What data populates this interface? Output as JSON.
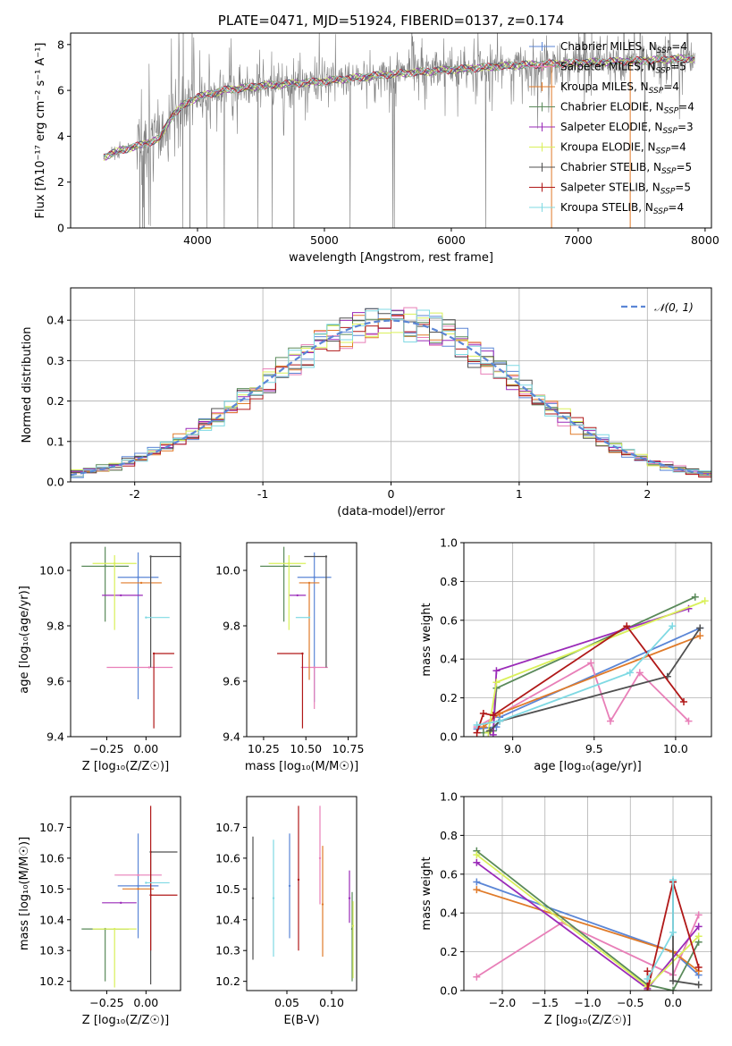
{
  "colors": {
    "Chabrier MILES": "#5b86d6",
    "Salpeter MILES": "#e87fb8",
    "Kroupa MILES": "#e07b2a",
    "Chabrier ELODIE": "#5a8a5a",
    "Salpeter ELODIE": "#9a2ab8",
    "Kroupa ELODIE": "#d9f05a",
    "Chabrier STELIB": "#505050",
    "Salpeter STELIB": "#b01818",
    "Kroupa STELIB": "#7fd9e3"
  },
  "chart_data": [
    {
      "id": "spectrum",
      "type": "line",
      "title": "PLATE=0471, MJD=51924, FIBERID=0137, z=0.174",
      "xlabel": "wavelength [Angstrom, rest frame]",
      "ylabel": "Flux [fλ10⁻¹⁷ erg cm⁻² s⁻¹ A⁻¹]",
      "xlim": [
        3000,
        8050
      ],
      "ylim": [
        0,
        8.5
      ],
      "xticks": [
        4000,
        5000,
        6000,
        7000,
        8000
      ],
      "yticks": [
        0,
        2,
        4,
        6,
        8
      ],
      "data_color": "#808080",
      "continuum_points": [
        [
          3260,
          3.1
        ],
        [
          3400,
          3.4
        ],
        [
          3550,
          3.6
        ],
        [
          3700,
          3.9
        ],
        [
          3800,
          4.9
        ],
        [
          3900,
          5.4
        ],
        [
          4000,
          5.7
        ],
        [
          4200,
          6.0
        ],
        [
          4500,
          6.2
        ],
        [
          5000,
          6.4
        ],
        [
          5500,
          6.7
        ],
        [
          6000,
          6.9
        ],
        [
          6500,
          7.1
        ],
        [
          7000,
          7.2
        ],
        [
          7500,
          7.3
        ],
        [
          7900,
          7.4
        ]
      ],
      "legend": [
        {
          "label": "Chabrier MILES, N",
          "sub": "SSP",
          "tail": "=4"
        },
        {
          "label": "Salpeter MILES, N",
          "sub": "SSP",
          "tail": "=5"
        },
        {
          "label": "Kroupa MILES, N",
          "sub": "SSP",
          "tail": "=4"
        },
        {
          "label": "Chabrier ELODIE, N",
          "sub": "SSP",
          "tail": "=4"
        },
        {
          "label": "Salpeter ELODIE, N",
          "sub": "SSP",
          "tail": "=3"
        },
        {
          "label": "Kroupa ELODIE, N",
          "sub": "SSP",
          "tail": "=4"
        },
        {
          "label": "Chabrier STELIB, N",
          "sub": "SSP",
          "tail": "=5"
        },
        {
          "label": "Salpeter STELIB, N",
          "sub": "SSP",
          "tail": "=5"
        },
        {
          "label": "Kroupa STELIB, N",
          "sub": "SSP",
          "tail": "=4"
        }
      ],
      "legend_placement": "right"
    },
    {
      "id": "residuals",
      "type": "line",
      "xlabel": "(data-model)/error",
      "ylabel": "Normed distribution",
      "xlim": [
        -2.5,
        2.5
      ],
      "ylim": [
        0,
        0.48
      ],
      "xticks": [
        -2,
        -1,
        0,
        1,
        2
      ],
      "yticks": [
        0.0,
        0.1,
        0.2,
        0.3,
        0.4
      ],
      "grid": true,
      "legend": [
        {
          "label": "𝒩(0, 1)",
          "color": "#5b86d6",
          "style": "dashed"
        }
      ],
      "legend_placement": "top-right",
      "bin_width": 0.1
    },
    {
      "id": "age_vs_Z",
      "type": "scatter",
      "xlabel": "Z [log₁₀(Z/Z☉)]",
      "ylabel": "age  [log₁₀(age/yr)]",
      "xlim": [
        -0.48,
        0.22
      ],
      "ylim": [
        9.4,
        10.1
      ],
      "xticks": [
        -0.25,
        0.0
      ],
      "xticklabels": [
        "−0.25",
        "0.00"
      ],
      "yticks": [
        9.4,
        9.6,
        9.8,
        10.0
      ],
      "points": [
        {
          "model": "Chabrier MILES",
          "x": -0.05,
          "y": 9.975,
          "xerr": [
            0.13,
            0.13
          ],
          "yerr": [
            0.44,
            0.09
          ]
        },
        {
          "model": "Salpeter MILES",
          "x": 0.02,
          "y": 9.65,
          "xerr": [
            0.27,
            0.15
          ],
          "yerr": [
            0.0,
            0.0
          ]
        },
        {
          "model": "Kroupa MILES",
          "x": -0.03,
          "y": 9.955,
          "xerr": [
            0.13,
            0.13
          ],
          "yerr": [
            0.0,
            0.0
          ]
        },
        {
          "model": "Chabrier ELODIE",
          "x": -0.26,
          "y": 10.015,
          "xerr": [
            0.15,
            0.15
          ],
          "yerr": [
            0.2,
            0.07
          ]
        },
        {
          "model": "Salpeter ELODIE",
          "x": -0.16,
          "y": 9.91,
          "xerr": [
            0.12,
            0.14
          ],
          "yerr": [
            0.0,
            0.0
          ]
        },
        {
          "model": "Kroupa ELODIE",
          "x": -0.2,
          "y": 10.025,
          "xerr": [
            0.14,
            0.14
          ],
          "yerr": [
            0.24,
            0.03
          ]
        },
        {
          "model": "Chabrier STELIB",
          "x": 0.03,
          "y": 10.05,
          "xerr": [
            0.0,
            0.2
          ],
          "yerr": [
            0.4,
            0.0
          ]
        },
        {
          "model": "Salpeter STELIB",
          "x": 0.05,
          "y": 9.7,
          "xerr": [
            0.0,
            0.13
          ],
          "yerr": [
            0.27,
            0.0
          ]
        },
        {
          "model": "Kroupa STELIB",
          "x": 0.0,
          "y": 9.83,
          "xerr": [
            0.0,
            0.15
          ],
          "yerr": [
            0.0,
            0.0
          ]
        }
      ]
    },
    {
      "id": "age_vs_mass",
      "type": "scatter",
      "xlabel": "mass [log₁₀(M/M☉)]",
      "xlim": [
        10.15,
        10.8
      ],
      "ylim": [
        9.4,
        10.1
      ],
      "xticks": [
        10.25,
        10.5,
        10.75
      ],
      "xticklabels": [
        "10.25",
        "10.50",
        "10.75"
      ],
      "yticks": [
        9.4,
        9.6,
        9.8,
        10.0
      ],
      "points": [
        {
          "model": "Chabrier MILES",
          "x": 10.55,
          "y": 9.975,
          "xerr": [
            0.1,
            0.1
          ],
          "yerr": [
            0.45,
            0.09
          ]
        },
        {
          "model": "Salpeter MILES",
          "x": 10.55,
          "y": 9.65,
          "xerr": [
            0.08,
            0.08
          ],
          "yerr": [
            0.15,
            0.0
          ]
        },
        {
          "model": "Kroupa MILES",
          "x": 10.52,
          "y": 9.955,
          "xerr": [
            0.06,
            0.06
          ],
          "yerr": [
            0.35,
            0.0
          ]
        },
        {
          "model": "Chabrier ELODIE",
          "x": 10.37,
          "y": 10.015,
          "xerr": [
            0.14,
            0.1
          ],
          "yerr": [
            0.2,
            0.07
          ]
        },
        {
          "model": "Salpeter ELODIE",
          "x": 10.45,
          "y": 9.91,
          "xerr": [
            0.05,
            0.05
          ],
          "yerr": [
            0.0,
            0.0
          ]
        },
        {
          "model": "Kroupa ELODIE",
          "x": 10.4,
          "y": 10.025,
          "xerr": [
            0.12,
            0.1
          ],
          "yerr": [
            0.24,
            0.03
          ]
        },
        {
          "model": "Chabrier STELIB",
          "x": 10.62,
          "y": 10.05,
          "xerr": [
            0.13,
            0.0
          ],
          "yerr": [
            0.4,
            0.0
          ]
        },
        {
          "model": "Salpeter STELIB",
          "x": 10.48,
          "y": 9.7,
          "xerr": [
            0.15,
            0.0
          ],
          "yerr": [
            0.27,
            0.0
          ]
        },
        {
          "model": "Kroupa STELIB",
          "x": 10.52,
          "y": 9.83,
          "xerr": [
            0.08,
            0.0
          ],
          "yerr": [
            0.0,
            0.0
          ]
        }
      ]
    },
    {
      "id": "weight_vs_age",
      "type": "line",
      "xlabel": "age  [log₁₀(age/yr)]",
      "ylabel": "mass weight",
      "xlim": [
        8.7,
        10.22
      ],
      "ylim": [
        0,
        1.0
      ],
      "xticks": [
        9.0,
        9.5,
        10.0
      ],
      "xticklabels": [
        "9.0",
        "9.5",
        "10.0"
      ],
      "yticks": [
        0.0,
        0.2,
        0.4,
        0.6,
        0.8,
        1.0
      ],
      "grid": true,
      "series": [
        {
          "model": "Chabrier MILES",
          "x": [
            8.78,
            8.9,
            8.92,
            10.15
          ],
          "y": [
            0.04,
            0.05,
            0.1,
            0.56
          ]
        },
        {
          "model": "Salpeter MILES",
          "x": [
            8.78,
            9.48,
            9.6,
            9.78,
            10.08
          ],
          "y": [
            0.05,
            0.38,
            0.08,
            0.33,
            0.08
          ]
        },
        {
          "model": "Kroupa MILES",
          "x": [
            8.82,
            8.92,
            10.15
          ],
          "y": [
            0.05,
            0.12,
            0.52
          ]
        },
        {
          "model": "Chabrier ELODIE",
          "x": [
            8.82,
            8.88,
            8.9,
            10.12
          ],
          "y": [
            0.02,
            0.03,
            0.25,
            0.72
          ]
        },
        {
          "model": "Salpeter ELODIE",
          "x": [
            8.88,
            8.9,
            10.08
          ],
          "y": [
            0.01,
            0.34,
            0.66
          ]
        },
        {
          "model": "Kroupa ELODIE",
          "x": [
            8.85,
            8.9,
            10.18
          ],
          "y": [
            0.02,
            0.28,
            0.7
          ]
        },
        {
          "model": "Chabrier STELIB",
          "x": [
            8.86,
            8.92,
            9.95,
            10.15
          ],
          "y": [
            0.03,
            0.08,
            0.31,
            0.56
          ]
        },
        {
          "model": "Salpeter STELIB",
          "x": [
            8.78,
            8.82,
            8.88,
            9.7,
            10.05
          ],
          "y": [
            0.02,
            0.12,
            0.11,
            0.57,
            0.18
          ]
        },
        {
          "model": "Kroupa STELIB",
          "x": [
            8.78,
            8.92,
            9.72,
            9.98
          ],
          "y": [
            0.06,
            0.08,
            0.33,
            0.57
          ]
        }
      ]
    },
    {
      "id": "mass_vs_Z",
      "type": "scatter",
      "xlabel": "Z [log₁₀(Z/Z☉)]",
      "ylabel": "mass [log₁₀(M/M☉)]",
      "xlim": [
        -0.48,
        0.22
      ],
      "ylim": [
        10.17,
        10.8
      ],
      "xticks": [
        -0.25,
        0.0
      ],
      "xticklabels": [
        "−0.25",
        "0.00"
      ],
      "yticks": [
        10.2,
        10.3,
        10.4,
        10.5,
        10.6,
        10.7
      ],
      "points": [
        {
          "model": "Chabrier MILES",
          "x": -0.05,
          "y": 10.51,
          "xerr": [
            0.13,
            0.13
          ],
          "yerr": [
            0.17,
            0.17
          ]
        },
        {
          "model": "Salpeter MILES",
          "x": -0.05,
          "y": 10.545,
          "xerr": [
            0.15,
            0.15
          ],
          "yerr": [
            0.0,
            0.0
          ]
        },
        {
          "model": "Kroupa MILES",
          "x": -0.05,
          "y": 10.5,
          "xerr": [
            0.1,
            0.1
          ],
          "yerr": [
            0.0,
            0.0
          ]
        },
        {
          "model": "Chabrier ELODIE",
          "x": -0.26,
          "y": 10.37,
          "xerr": [
            0.15,
            0.15
          ],
          "yerr": [
            0.17,
            0.0
          ]
        },
        {
          "model": "Salpeter ELODIE",
          "x": -0.16,
          "y": 10.455,
          "xerr": [
            0.12,
            0.1
          ],
          "yerr": [
            0.0,
            0.0
          ]
        },
        {
          "model": "Kroupa ELODIE",
          "x": -0.2,
          "y": 10.37,
          "xerr": [
            0.14,
            0.14
          ],
          "yerr": [
            0.19,
            0.0
          ]
        },
        {
          "model": "Chabrier STELIB",
          "x": 0.03,
          "y": 10.62,
          "xerr": [
            0.0,
            0.17
          ],
          "yerr": [
            0.43,
            0.0
          ]
        },
        {
          "model": "Salpeter STELIB",
          "x": 0.03,
          "y": 10.48,
          "xerr": [
            0.0,
            0.17
          ],
          "yerr": [
            0.18,
            0.29
          ]
        },
        {
          "model": "Kroupa STELIB",
          "x": 0.0,
          "y": 10.52,
          "xerr": [
            0.0,
            0.15
          ],
          "yerr": [
            0.0,
            0.0
          ]
        }
      ]
    },
    {
      "id": "mass_vs_EBV",
      "type": "scatter",
      "xlabel": "E(B-V)",
      "xlim": [
        0.005,
        0.128
      ],
      "ylim": [
        10.17,
        10.8
      ],
      "xticks": [
        0.05,
        0.1
      ],
      "xticklabels": [
        "0.05",
        "0.10"
      ],
      "yticks": [
        10.2,
        10.3,
        10.4,
        10.5,
        10.6,
        10.7
      ],
      "points": [
        {
          "model": "Chabrier MILES",
          "x": 0.053,
          "y": 10.51,
          "xerr": [
            0.0,
            0.0
          ],
          "yerr": [
            0.17,
            0.17
          ]
        },
        {
          "model": "Salpeter MILES",
          "x": 0.087,
          "y": 10.6,
          "xerr": [
            0.0,
            0.0
          ],
          "yerr": [
            0.15,
            0.17
          ]
        },
        {
          "model": "Kroupa MILES",
          "x": 0.09,
          "y": 10.45,
          "xerr": [
            0.0,
            0.0
          ],
          "yerr": [
            0.17,
            0.19
          ]
        },
        {
          "model": "Chabrier ELODIE",
          "x": 0.123,
          "y": 10.37,
          "xerr": [
            0.0,
            0.0
          ],
          "yerr": [
            0.17,
            0.12
          ]
        },
        {
          "model": "Salpeter ELODIE",
          "x": 0.12,
          "y": 10.47,
          "xerr": [
            0.0,
            0.0
          ],
          "yerr": [
            0.08,
            0.09
          ]
        },
        {
          "model": "Kroupa ELODIE",
          "x": 0.124,
          "y": 10.38,
          "xerr": [
            0.0,
            0.0
          ],
          "yerr": [
            0.17,
            0.08
          ]
        },
        {
          "model": "Chabrier STELIB",
          "x": 0.012,
          "y": 10.47,
          "xerr": [
            0.0,
            0.0
          ],
          "yerr": [
            0.2,
            0.2
          ]
        },
        {
          "model": "Salpeter STELIB",
          "x": 0.063,
          "y": 10.53,
          "xerr": [
            0.0,
            0.0
          ],
          "yerr": [
            0.23,
            0.24
          ]
        },
        {
          "model": "Kroupa STELIB",
          "x": 0.035,
          "y": 10.47,
          "xerr": [
            0.0,
            0.0
          ],
          "yerr": [
            0.19,
            0.19
          ]
        }
      ]
    },
    {
      "id": "weight_vs_Z",
      "type": "line",
      "xlabel": "Z [log₁₀(Z/Z☉)]",
      "ylabel": "mass weight",
      "xlim": [
        -2.45,
        0.45
      ],
      "ylim": [
        0,
        1.0
      ],
      "xticks": [
        -2.0,
        -1.5,
        -1.0,
        -0.5,
        0.0
      ],
      "xticklabels": [
        "−2.0",
        "−1.5",
        "−1.0",
        "−0.5",
        "0.0"
      ],
      "yticks": [
        0.0,
        0.2,
        0.4,
        0.6,
        0.8,
        1.0
      ],
      "grid": true,
      "series": [
        {
          "model": "Chabrier MILES",
          "x": [
            -2.3,
            0.0,
            0.3
          ],
          "y": [
            0.56,
            0.2,
            0.08
          ]
        },
        {
          "model": "Salpeter MILES",
          "x": [
            -2.3,
            -1.3,
            0.0,
            0.3
          ],
          "y": [
            0.07,
            0.35,
            0.08,
            0.39
          ]
        },
        {
          "model": "Kroupa MILES",
          "x": [
            -2.3,
            0.0,
            0.3
          ],
          "y": [
            0.52,
            0.2,
            0.1
          ]
        },
        {
          "model": "Chabrier ELODIE",
          "x": [
            -2.3,
            -0.3,
            0.0,
            0.3
          ],
          "y": [
            0.72,
            0.03,
            0.0,
            0.25
          ]
        },
        {
          "model": "Salpeter ELODIE",
          "x": [
            -2.3,
            -0.3,
            0.3
          ],
          "y": [
            0.66,
            0.01,
            0.33
          ]
        },
        {
          "model": "Kroupa ELODIE",
          "x": [
            -2.3,
            -0.3,
            0.3
          ],
          "y": [
            0.7,
            0.02,
            0.28
          ]
        },
        {
          "model": "Chabrier STELIB",
          "x": [
            0.0,
            0.0,
            0.3
          ],
          "y": [
            0.56,
            0.05,
            0.03
          ]
        },
        {
          "model": "Salpeter STELIB",
          "x": [
            -0.3,
            -0.3,
            0.0,
            0.3
          ],
          "y": [
            0.1,
            0.0,
            0.56,
            0.12
          ]
        },
        {
          "model": "Kroupa STELIB",
          "x": [
            -0.3,
            0.0,
            0.0
          ],
          "y": [
            0.06,
            0.3,
            0.57
          ]
        }
      ]
    }
  ]
}
